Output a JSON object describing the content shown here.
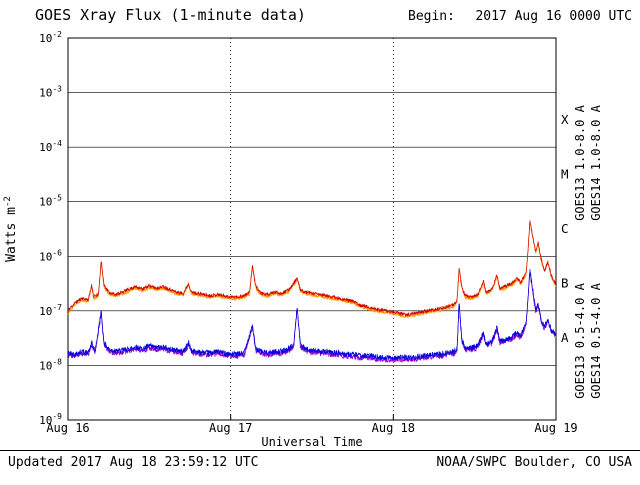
{
  "header": {
    "title": "GOES Xray Flux (1-minute data)",
    "begin_label": "Begin:",
    "begin_value": "2017 Aug 16 0000 UTC"
  },
  "footer": {
    "updated": "Updated 2017 Aug 18 23:59:12 UTC",
    "source": "NOAA/SWPC Boulder, CO USA"
  },
  "chart_data": {
    "type": "line",
    "title": "GOES Xray Flux (1-minute data)",
    "xlabel": "Universal Time",
    "ylabel": "Watts m^-2",
    "x_unit": "hours since 2017 Aug 16 0000 UTC",
    "xlim": [
      0,
      72
    ],
    "ylim_log10": [
      -9,
      -2
    ],
    "yticks": [
      {
        "label": "10^-2",
        "log10": -2
      },
      {
        "label": "10^-3",
        "log10": -3
      },
      {
        "label": "10^-4",
        "log10": -4
      },
      {
        "label": "10^-5",
        "log10": -5
      },
      {
        "label": "10^-6",
        "log10": -6
      },
      {
        "label": "10^-7",
        "log10": -7
      },
      {
        "label": "10^-8",
        "log10": -8
      },
      {
        "label": "10^-9",
        "log10": -9
      }
    ],
    "xticks": [
      {
        "label": "Aug 16",
        "hours": 0
      },
      {
        "label": "Aug 17",
        "hours": 24
      },
      {
        "label": "Aug 18",
        "hours": 48
      },
      {
        "label": "Aug 19",
        "hours": 72
      }
    ],
    "flare_classes": [
      {
        "label": "X",
        "log10": -3.5
      },
      {
        "label": "M",
        "log10": -4.5
      },
      {
        "label": "C",
        "log10": -5.5
      },
      {
        "label": "B",
        "log10": -6.5
      },
      {
        "label": "A",
        "log10": -7.5
      }
    ],
    "grid": {
      "h_lines_log10": [
        -3,
        -4,
        -5,
        -6,
        -7,
        -8
      ],
      "v_dotted_hours": [
        24,
        48
      ]
    },
    "draw_order": [
      "goes14_long",
      "goes13_long",
      "goes14_short",
      "goes13_short"
    ],
    "series": [
      {
        "name": "goes13_long",
        "label": "GOES13 1.0-8.0 A",
        "color": "#d40000",
        "noise_log10": 0.03,
        "seed": 11,
        "control_points": [
          [
            0,
            1e-07
          ],
          [
            1,
            1.4e-07
          ],
          [
            2,
            1.7e-07
          ],
          [
            3,
            1.6e-07
          ],
          [
            3.5,
            3e-07
          ],
          [
            3.8,
            1.8e-07
          ],
          [
            4.5,
            2e-07
          ],
          [
            4.9,
            8.5e-07
          ],
          [
            5.3,
            3e-07
          ],
          [
            6,
            2.2e-07
          ],
          [
            7,
            2e-07
          ],
          [
            8,
            2.2e-07
          ],
          [
            9,
            2.5e-07
          ],
          [
            10,
            2.8e-07
          ],
          [
            11,
            2.5e-07
          ],
          [
            12,
            2.9e-07
          ],
          [
            13,
            2.6e-07
          ],
          [
            14,
            2.8e-07
          ],
          [
            15,
            2.5e-07
          ],
          [
            16,
            2.2e-07
          ],
          [
            17,
            2.1e-07
          ],
          [
            17.8,
            3.2e-07
          ],
          [
            18.2,
            2.2e-07
          ],
          [
            19,
            2.1e-07
          ],
          [
            20,
            2e-07
          ],
          [
            21,
            1.9e-07
          ],
          [
            22,
            2e-07
          ],
          [
            23,
            1.9e-07
          ],
          [
            24,
            1.8e-07
          ],
          [
            25,
            1.8e-07
          ],
          [
            26,
            1.9e-07
          ],
          [
            26.8,
            2.2e-07
          ],
          [
            27.2,
            7e-07
          ],
          [
            27.7,
            2.8e-07
          ],
          [
            28.5,
            2.1e-07
          ],
          [
            29.5,
            2e-07
          ],
          [
            30.5,
            2.2e-07
          ],
          [
            31.5,
            2.1e-07
          ],
          [
            32.5,
            2.4e-07
          ],
          [
            33.3,
            3.2e-07
          ],
          [
            33.8,
            4e-07
          ],
          [
            34.3,
            2.4e-07
          ],
          [
            35,
            2.2e-07
          ],
          [
            36,
            2.1e-07
          ],
          [
            37,
            2e-07
          ],
          [
            38,
            1.9e-07
          ],
          [
            39,
            1.8e-07
          ],
          [
            40,
            1.7e-07
          ],
          [
            41,
            1.6e-07
          ],
          [
            42,
            1.5e-07
          ],
          [
            43,
            1.3e-07
          ],
          [
            44,
            1.2e-07
          ],
          [
            45,
            1.1e-07
          ],
          [
            46,
            1.05e-07
          ],
          [
            47,
            1e-07
          ],
          [
            48,
            9.5e-08
          ],
          [
            49,
            9e-08
          ],
          [
            50,
            8.5e-08
          ],
          [
            51,
            9e-08
          ],
          [
            52,
            9.5e-08
          ],
          [
            53,
            1e-07
          ],
          [
            54,
            1.05e-07
          ],
          [
            55,
            1.1e-07
          ],
          [
            56,
            1.2e-07
          ],
          [
            57,
            1.3e-07
          ],
          [
            57.4,
            1.6e-07
          ],
          [
            57.7,
            6e-07
          ],
          [
            58.1,
            2.8e-07
          ],
          [
            58.6,
            1.9e-07
          ],
          [
            59.5,
            1.8e-07
          ],
          [
            60.5,
            2e-07
          ],
          [
            61.3,
            3.5e-07
          ],
          [
            61.7,
            2.2e-07
          ],
          [
            62.5,
            2.5e-07
          ],
          [
            63.3,
            4.5e-07
          ],
          [
            63.7,
            2.6e-07
          ],
          [
            64.5,
            2.8e-07
          ],
          [
            65.5,
            3.2e-07
          ],
          [
            66.2,
            4e-07
          ],
          [
            66.8,
            3.3e-07
          ],
          [
            67.6,
            5e-07
          ],
          [
            67.9,
            1.5e-06
          ],
          [
            68.15,
            4.5e-06
          ],
          [
            68.5,
            2.6e-06
          ],
          [
            69.0,
            1.2e-06
          ],
          [
            69.35,
            1.8e-06
          ],
          [
            69.8,
            9e-07
          ],
          [
            70.3,
            5.5e-07
          ],
          [
            70.8,
            8e-07
          ],
          [
            71.3,
            4.5e-07
          ],
          [
            71.7,
            3.5e-07
          ],
          [
            72,
            3e-07
          ]
        ]
      },
      {
        "name": "goes14_long",
        "label": "GOES14 1.0-8.0 A",
        "color": "#ff9900",
        "noise_log10": 0.03,
        "seed": 27,
        "derived_from": "goes13_long",
        "scale": 0.93
      },
      {
        "name": "goes13_short",
        "label": "GOES13 0.5-4.0 A",
        "color": "#0000dd",
        "noise_log10": 0.05,
        "seed": 42,
        "control_points": [
          [
            0,
            1.7e-08
          ],
          [
            1,
            1.6e-08
          ],
          [
            2,
            1.8e-08
          ],
          [
            3,
            1.7e-08
          ],
          [
            3.5,
            2.6e-08
          ],
          [
            4,
            1.8e-08
          ],
          [
            4.9,
            1e-07
          ],
          [
            5.3,
            2.6e-08
          ],
          [
            6,
            2e-08
          ],
          [
            7,
            1.8e-08
          ],
          [
            8,
            1.9e-08
          ],
          [
            9,
            2e-08
          ],
          [
            10,
            2.2e-08
          ],
          [
            11,
            2e-08
          ],
          [
            12,
            2.3e-08
          ],
          [
            13,
            2.1e-08
          ],
          [
            14,
            2.2e-08
          ],
          [
            15,
            2e-08
          ],
          [
            16,
            1.9e-08
          ],
          [
            17,
            1.8e-08
          ],
          [
            17.8,
            2.6e-08
          ],
          [
            18.2,
            1.9e-08
          ],
          [
            19,
            1.8e-08
          ],
          [
            20,
            1.7e-08
          ],
          [
            21,
            1.7e-08
          ],
          [
            22,
            1.8e-08
          ],
          [
            23,
            1.7e-08
          ],
          [
            24,
            1.6e-08
          ],
          [
            25,
            1.6e-08
          ],
          [
            26,
            1.7e-08
          ],
          [
            27.2,
            5.5e-08
          ],
          [
            27.7,
            2e-08
          ],
          [
            28.5,
            1.8e-08
          ],
          [
            29.5,
            1.7e-08
          ],
          [
            30.5,
            1.8e-08
          ],
          [
            31.5,
            1.8e-08
          ],
          [
            32.5,
            2e-08
          ],
          [
            33.3,
            2.4e-08
          ],
          [
            33.8,
            1.2e-07
          ],
          [
            34.3,
            2.4e-08
          ],
          [
            35,
            2e-08
          ],
          [
            36,
            1.9e-08
          ],
          [
            37,
            1.8e-08
          ],
          [
            38,
            1.8e-08
          ],
          [
            39,
            1.7e-08
          ],
          [
            40,
            1.7e-08
          ],
          [
            41,
            1.6e-08
          ],
          [
            42,
            1.6e-08
          ],
          [
            43,
            1.5e-08
          ],
          [
            44,
            1.5e-08
          ],
          [
            45,
            1.5e-08
          ],
          [
            46,
            1.4e-08
          ],
          [
            47,
            1.4e-08
          ],
          [
            48,
            1.4e-08
          ],
          [
            49,
            1.4e-08
          ],
          [
            50,
            1.4e-08
          ],
          [
            51,
            1.4e-08
          ],
          [
            52,
            1.5e-08
          ],
          [
            53,
            1.5e-08
          ],
          [
            54,
            1.6e-08
          ],
          [
            55,
            1.6e-08
          ],
          [
            56,
            1.7e-08
          ],
          [
            57,
            1.8e-08
          ],
          [
            57.4,
            2e-08
          ],
          [
            57.7,
            1.5e-07
          ],
          [
            58.1,
            3e-08
          ],
          [
            58.6,
            2.1e-08
          ],
          [
            59.5,
            2.1e-08
          ],
          [
            60.5,
            2.3e-08
          ],
          [
            61.3,
            4e-08
          ],
          [
            61.7,
            2.5e-08
          ],
          [
            62.5,
            2.7e-08
          ],
          [
            63.3,
            5e-08
          ],
          [
            63.7,
            2.8e-08
          ],
          [
            64.5,
            3e-08
          ],
          [
            65.5,
            3.3e-08
          ],
          [
            66.2,
            4e-08
          ],
          [
            66.8,
            3.5e-08
          ],
          [
            67.6,
            6e-08
          ],
          [
            67.9,
            2e-07
          ],
          [
            68.15,
            5.5e-07
          ],
          [
            68.5,
            2.8e-07
          ],
          [
            69.0,
            1e-07
          ],
          [
            69.35,
            1.4e-07
          ],
          [
            69.8,
            7e-08
          ],
          [
            70.3,
            5e-08
          ],
          [
            70.8,
            7e-08
          ],
          [
            71.3,
            4.5e-08
          ],
          [
            71.7,
            4e-08
          ],
          [
            72,
            3.8e-08
          ]
        ]
      },
      {
        "name": "goes14_short",
        "label": "GOES14 0.5-4.0 A",
        "color": "#8800cc",
        "noise_log10": 0.05,
        "seed": 58,
        "derived_from": "goes13_short",
        "scale": 0.92
      }
    ]
  }
}
